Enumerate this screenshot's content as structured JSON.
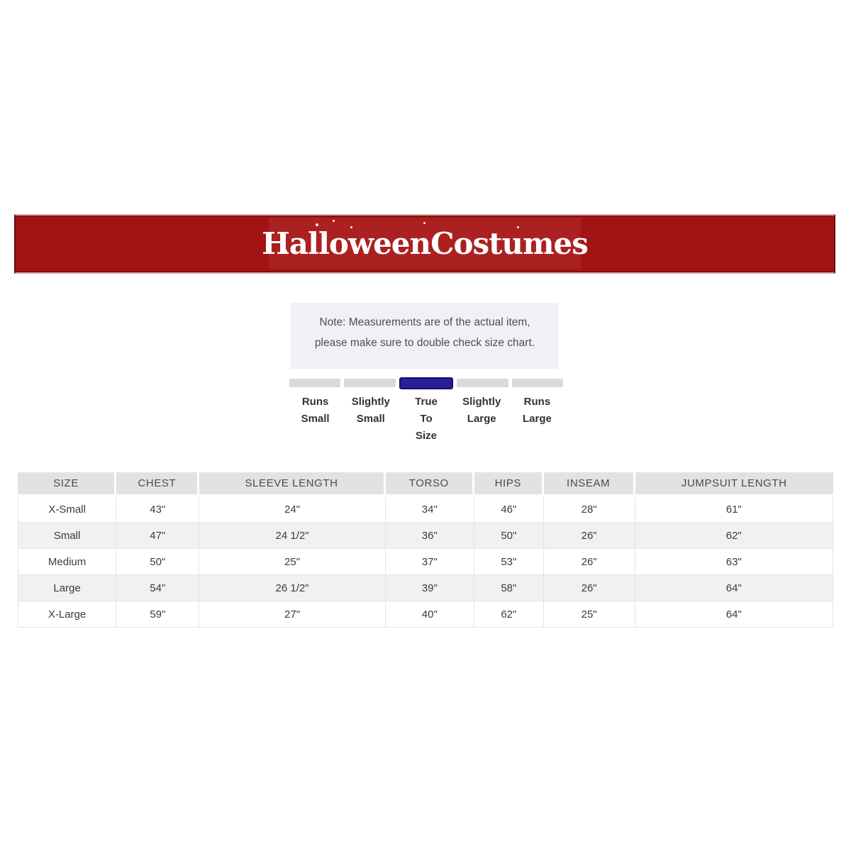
{
  "brand_bar": {
    "logo_text": "HalloweenCostumes",
    "bar_color": "#a21313",
    "logo_panel_color": "#ab2121"
  },
  "note": {
    "text": "Note: Measurements are of the actual item, please make sure to double check size chart.",
    "bg_color": "#f1f0f7"
  },
  "fit_scale": {
    "selected": "True To Size",
    "selected_index": 2,
    "selected_color": "#2a1e9c",
    "segment_color": "#dadada",
    "display_labels": [
      "Runs\nSmall",
      "Slightly\nSmall",
      "True\nTo\nSize",
      "Slightly\nLarge",
      "Runs\nLarge"
    ]
  },
  "chart_data": {
    "type": "table",
    "title": "HalloweenCostumes size chart",
    "columns": [
      "SIZE",
      "CHEST",
      "SLEEVE LENGTH",
      "TORSO",
      "HIPS",
      "INSEAM",
      "JUMPSUIT LENGTH"
    ],
    "rows": [
      [
        "X-Small",
        "43\"",
        "24\"",
        "34\"",
        "46\"",
        "28\"",
        "61\""
      ],
      [
        "Small",
        "47\"",
        "24 1/2\"",
        "36\"",
        "50\"",
        "26\"",
        "62\""
      ],
      [
        "Medium",
        "50\"",
        "25\"",
        "37\"",
        "53\"",
        "26\"",
        "63\""
      ],
      [
        "Large",
        "54\"",
        "26 1/2\"",
        "39\"",
        "58\"",
        "26\"",
        "64\""
      ],
      [
        "X-Large",
        "59\"",
        "27\"",
        "40\"",
        "62\"",
        "25\"",
        "64\""
      ]
    ],
    "fit_indicator": {
      "scale": [
        "Runs Small",
        "Slightly Small",
        "True To Size",
        "Slightly Large",
        "Runs Large"
      ],
      "selected": "True To Size"
    },
    "layout_hints": {
      "header_bg": "#e2e2e2",
      "alt_row_bg": "#f1f1f1",
      "grid": true
    }
  }
}
